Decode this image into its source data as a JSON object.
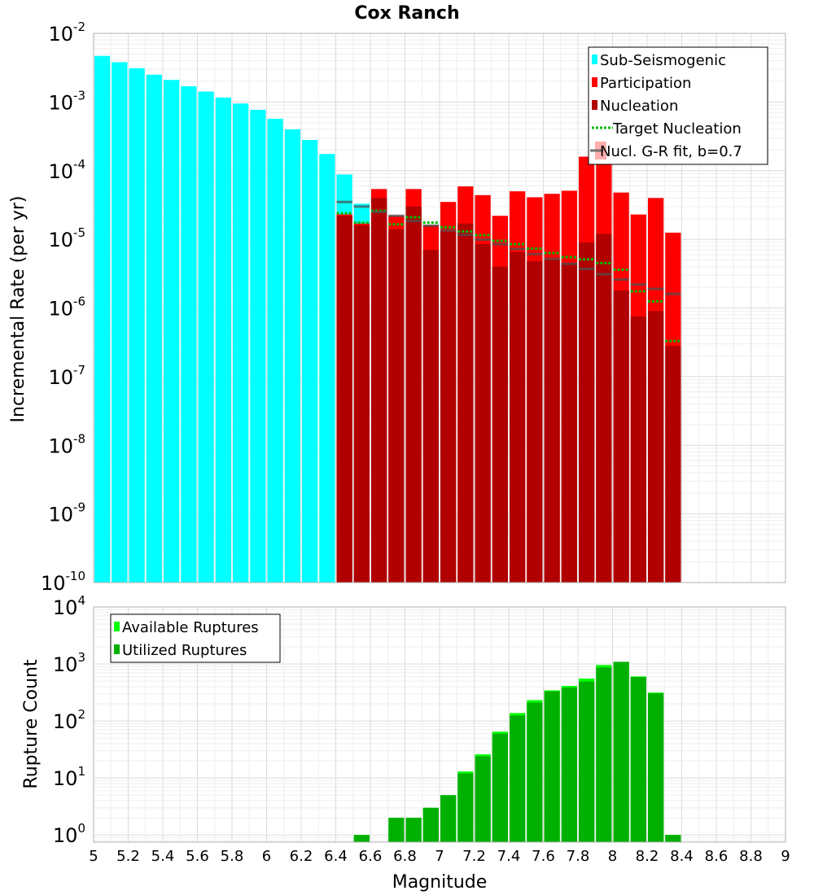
{
  "chart_data": [
    {
      "type": "bar",
      "title": "Cox Ranch",
      "xlabel": "",
      "ylabel": "Incremental Rate (per yr)",
      "yscale": "log",
      "xlim": [
        5,
        9
      ],
      "ylim": [
        1e-10,
        0.01
      ],
      "ytick_exponents": [
        "-10",
        "-9",
        "-8",
        "-7",
        "-6",
        "-5",
        "-4",
        "-3",
        "-2"
      ],
      "ytick_base": "10",
      "bin_width": 0.1,
      "legend": [
        {
          "label": "Sub-Seismogenic",
          "color": "#00ffff",
          "kind": "bar"
        },
        {
          "label": "Participation",
          "color": "#ff0000",
          "kind": "bar"
        },
        {
          "label": "Nucleation",
          "color": "#b00000",
          "kind": "bar"
        },
        {
          "label": " Target Nucleation",
          "color": "#00bb00",
          "kind": "dotted"
        },
        {
          "label": "Nucl. G-R fit, b=0.7",
          "color": "#808080",
          "kind": "line"
        }
      ],
      "series": [
        {
          "name": "Sub-Seismogenic",
          "color": "#00ffff",
          "x": [
            5.05,
            5.15,
            5.25,
            5.35,
            5.45,
            5.55,
            5.65,
            5.75,
            5.85,
            5.95,
            6.05,
            6.15,
            6.25,
            6.35,
            6.45,
            6.55
          ],
          "values": [
            0.0047,
            0.0038,
            0.0031,
            0.0025,
            0.0021,
            0.0017,
            0.00142,
            0.00116,
            0.00095,
            0.00077,
            0.00057,
            0.0004,
            0.00028,
            0.000175,
            8.8e-05,
            3.3e-05
          ]
        },
        {
          "name": "Participation",
          "color": "#ff0000",
          "x": [
            6.45,
            6.55,
            6.65,
            6.75,
            6.85,
            6.95,
            7.05,
            7.15,
            7.25,
            7.35,
            7.45,
            7.55,
            7.65,
            7.75,
            7.85,
            7.95,
            8.05,
            8.15,
            8.25,
            8.35
          ],
          "values": [
            2.3e-05,
            1.7e-05,
            5.4e-05,
            2.2e-05,
            5.4e-05,
            1.6e-05,
            3.5e-05,
            5.9e-05,
            4.4e-05,
            2.2e-05,
            5e-05,
            4.1e-05,
            4.6e-05,
            5.1e-05,
            0.00016,
            0.00022,
            4.8e-05,
            2.3e-05,
            4e-05,
            1.25e-05
          ]
        },
        {
          "name": "Nucleation",
          "color": "#b00000",
          "x": [
            6.45,
            6.55,
            6.65,
            6.75,
            6.85,
            6.95,
            7.05,
            7.15,
            7.25,
            7.35,
            7.45,
            7.55,
            7.65,
            7.75,
            7.85,
            7.95,
            8.05,
            8.15,
            8.25,
            8.35
          ],
          "values": [
            2.2e-05,
            1.6e-05,
            4e-05,
            1.4e-05,
            3e-05,
            7e-06,
            1.3e-05,
            1.7e-05,
            8.5e-06,
            4e-06,
            6.5e-06,
            4.8e-06,
            5e-06,
            4.5e-06,
            9e-06,
            1.2e-05,
            1.8e-06,
            7.5e-07,
            9e-07,
            2.8e-07
          ]
        },
        {
          "name": "Target Nucleation",
          "color": "#00bb00",
          "x": [
            6.45,
            6.55,
            6.65,
            6.75,
            6.85,
            6.95,
            7.05,
            7.15,
            7.25,
            7.35,
            7.45,
            7.55,
            7.65,
            7.75,
            7.85,
            7.95,
            8.05,
            8.15,
            8.25,
            8.35
          ],
          "values": [
            2.4e-05,
            1.75e-05,
            2.6e-05,
            1.65e-05,
            2.1e-05,
            1.75e-05,
            1.5e-05,
            1.3e-05,
            1.15e-05,
            9.5e-06,
            8.5e-06,
            7.3e-06,
            6.3e-06,
            5.5e-06,
            5.1e-06,
            4.5e-06,
            3.6e-06,
            1.75e-06,
            1.25e-06,
            3.3e-07
          ]
        },
        {
          "name": "Nucl. G-R fit, b=0.7",
          "color": "#505050",
          "x": [
            6.45,
            6.55,
            6.65,
            6.75,
            6.85,
            6.95,
            7.05,
            7.15,
            7.25,
            7.35,
            7.45,
            7.55,
            7.65,
            7.75,
            7.85,
            7.95,
            8.05,
            8.15,
            8.25,
            8.35
          ],
          "values": [
            3.5e-05,
            3e-05,
            2.5e-05,
            2.2e-05,
            1.85e-05,
            1.58e-05,
            1.35e-05,
            1.16e-05,
            9.9e-06,
            8.5e-06,
            7.2e-06,
            6.1e-06,
            5.2e-06,
            4.4e-06,
            3.7e-06,
            3.1e-06,
            2.6e-06,
            2.2e-06,
            1.9e-06,
            1.6e-06
          ]
        }
      ]
    },
    {
      "type": "bar",
      "title": "",
      "xlabel": "Magnitude",
      "ylabel": "Rupture Count",
      "yscale": "log",
      "xlim": [
        5,
        9
      ],
      "ylim": [
        0.75,
        10000
      ],
      "ytick_exponents": [
        "0",
        "1",
        "2",
        "3",
        "4"
      ],
      "ytick_base": "10",
      "xticks": [
        "5",
        "5.2",
        "5.4",
        "5.6",
        "5.8",
        "6",
        "6.2",
        "6.4",
        "6.6",
        "6.8",
        "7",
        "7.2",
        "7.4",
        "7.6",
        "7.8",
        "8",
        "8.2",
        "8.4",
        "8.6",
        "8.8",
        "9"
      ],
      "bin_width": 0.1,
      "legend": [
        {
          "label": "Available Ruptures",
          "color": "#00ff00",
          "kind": "bar"
        },
        {
          "label": "Utilized Ruptures",
          "color": "#00b000",
          "kind": "bar"
        }
      ],
      "series": [
        {
          "name": "Available Ruptures",
          "color": "#00ff00",
          "x": [
            6.55,
            6.75,
            6.85,
            6.95,
            7.05,
            7.15,
            7.25,
            7.35,
            7.45,
            7.55,
            7.65,
            7.75,
            7.85,
            7.95,
            8.05,
            8.15,
            8.25,
            8.35
          ],
          "values": [
            1,
            2,
            2,
            3,
            5,
            13,
            26,
            65,
            138,
            232,
            345,
            412,
            555,
            960,
            1090,
            605,
            315,
            1
          ]
        },
        {
          "name": "Utilized Ruptures",
          "color": "#00b000",
          "x": [
            6.55,
            6.75,
            6.85,
            6.95,
            7.05,
            7.15,
            7.25,
            7.35,
            7.45,
            7.55,
            7.65,
            7.75,
            7.85,
            7.95,
            8.05,
            8.15,
            8.25,
            8.35
          ],
          "values": [
            1,
            2,
            2,
            3,
            5,
            12,
            24,
            60,
            125,
            210,
            330,
            385,
            490,
            870,
            1090,
            590,
            305,
            1
          ]
        }
      ]
    }
  ]
}
